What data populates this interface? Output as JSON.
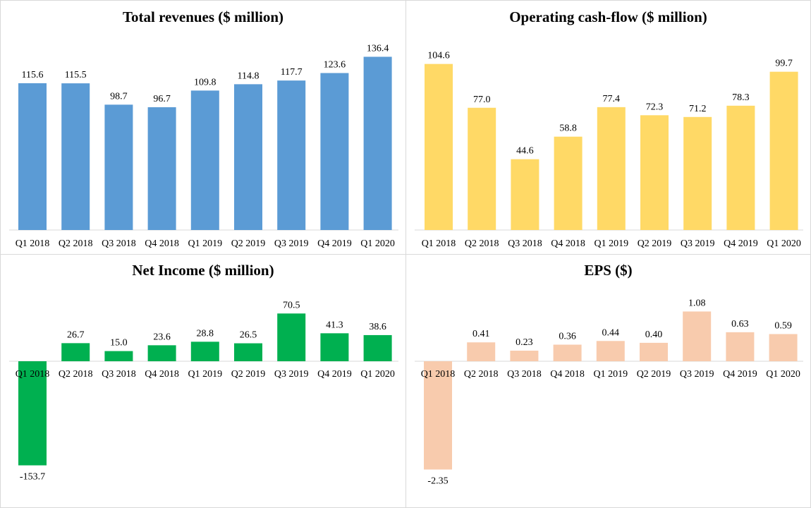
{
  "chart_data": [
    {
      "type": "bar",
      "title": "Total revenues ($ million)",
      "categories": [
        "Q1 2018",
        "Q2 2018",
        "Q3 2018",
        "Q4 2018",
        "Q1 2019",
        "Q2 2019",
        "Q3 2019",
        "Q4 2019",
        "Q1 2020"
      ],
      "values": [
        115.6,
        115.5,
        98.7,
        96.7,
        109.8,
        114.8,
        117.7,
        123.6,
        136.4
      ],
      "labels": [
        "115.6",
        "115.5",
        "98.7",
        "96.7",
        "109.8",
        "114.8",
        "117.7",
        "123.6",
        "136.4"
      ],
      "color": "#5b9bd5",
      "ylim": [
        0,
        150
      ],
      "grid": false,
      "legend": "none"
    },
    {
      "type": "bar",
      "title": "Operating cash-flow ($ million)",
      "categories": [
        "Q1 2018",
        "Q2 2018",
        "Q3 2018",
        "Q4 2018",
        "Q1 2019",
        "Q2 2019",
        "Q3 2019",
        "Q4 2019",
        "Q1 2020"
      ],
      "values": [
        104.6,
        77.0,
        44.6,
        58.8,
        77.4,
        72.3,
        71.2,
        78.3,
        99.7
      ],
      "labels": [
        "104.6",
        "77.0",
        "44.6",
        "58.8",
        "77.4",
        "72.3",
        "71.2",
        "78.3",
        "99.7"
      ],
      "color": "#ffd966",
      "ylim": [
        0,
        115
      ],
      "grid": false,
      "legend": "none"
    },
    {
      "type": "bar",
      "title": "Net Income ($ million)",
      "categories": [
        "Q1 2018",
        "Q2 2018",
        "Q3 2018",
        "Q4 2018",
        "Q1 2019",
        "Q2 2019",
        "Q3 2019",
        "Q4 2019",
        "Q1 2020"
      ],
      "values": [
        -153.7,
        26.7,
        15.0,
        23.6,
        28.8,
        26.5,
        70.5,
        41.3,
        38.6
      ],
      "labels": [
        "-153.7",
        "26.7",
        "15.0",
        "23.6",
        "28.8",
        "26.5",
        "70.5",
        "41.3",
        "38.6"
      ],
      "color": "#00b050",
      "ylim": [
        -160,
        80
      ],
      "grid": false,
      "legend": "none"
    },
    {
      "type": "bar",
      "title": "EPS ($)",
      "categories": [
        "Q1 2018",
        "Q2 2018",
        "Q3 2018",
        "Q4 2018",
        "Q1 2019",
        "Q2 2019",
        "Q3 2019",
        "Q4 2019",
        "Q1 2020"
      ],
      "values": [
        -2.35,
        0.41,
        0.23,
        0.36,
        0.44,
        0.4,
        1.08,
        0.63,
        0.59
      ],
      "labels": [
        "-2.35",
        "0.41",
        "0.23",
        "0.36",
        "0.44",
        "0.40",
        "1.08",
        "0.63",
        "0.59"
      ],
      "color": "#f8cbad",
      "ylim": [
        -2.5,
        1.25
      ],
      "grid": false,
      "legend": "none"
    }
  ]
}
